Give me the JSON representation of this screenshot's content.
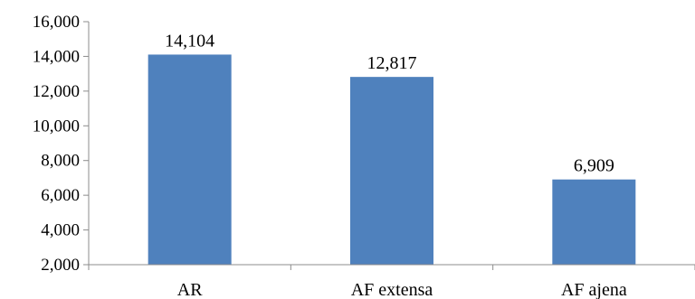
{
  "chart_data": {
    "type": "bar",
    "categories": [
      "AR",
      "AF extensa",
      "AF ajena"
    ],
    "values": [
      14104,
      12817,
      6909
    ],
    "value_labels": [
      "14,104",
      "12,817",
      "6,909"
    ],
    "title": "",
    "xlabel": "",
    "ylabel": "",
    "ylim": [
      2000,
      16000
    ],
    "y_ticks": [
      2000,
      4000,
      6000,
      8000,
      10000,
      12000,
      14000,
      16000
    ],
    "y_tick_labels": [
      "2,000",
      "4,000",
      "6,000",
      "8,000",
      "10,000",
      "12,000",
      "14,000",
      "16,000"
    ],
    "grid": false,
    "legend": "none",
    "bar_color": "#4f81bd"
  }
}
